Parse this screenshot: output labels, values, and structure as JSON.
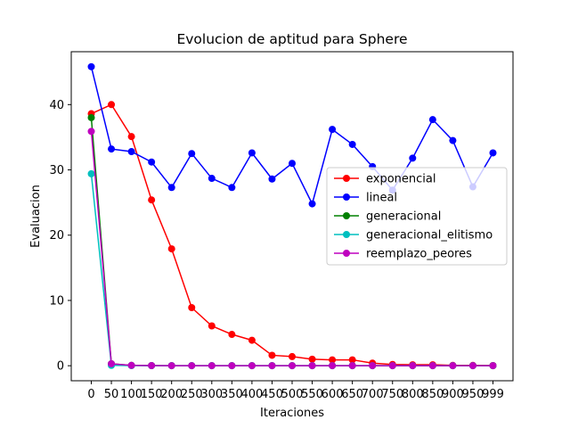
{
  "chart_data": {
    "type": "line",
    "title": "Evolucion de aptitud para Sphere",
    "xlabel": "Iteraciones",
    "ylabel": "Evaluacion",
    "xtick_labels": [
      "0",
      "50",
      "100",
      "150",
      "200",
      "250",
      "300",
      "350",
      "400",
      "450",
      "500",
      "550",
      "600",
      "650",
      "700",
      "750",
      "800",
      "850",
      "900",
      "950",
      "999"
    ],
    "yticks": [
      0,
      10,
      20,
      30,
      40
    ],
    "ylim": [
      -2.3,
      48.1
    ],
    "grid": false,
    "legend_position": "center-right",
    "series": [
      {
        "name": "exponencial",
        "color": "#ff0000",
        "values": [
          38.6,
          40.0,
          35.1,
          25.4,
          17.9,
          8.9,
          6.1,
          4.8,
          3.9,
          1.6,
          1.4,
          1.0,
          0.9,
          0.9,
          0.4,
          0.2,
          0.15,
          0.15,
          0.05,
          0.05,
          0.02
        ]
      },
      {
        "name": "lineal",
        "color": "#0000ff",
        "values": [
          45.8,
          33.2,
          32.8,
          31.2,
          27.3,
          32.5,
          28.7,
          27.3,
          32.6,
          28.6,
          31.0,
          24.8,
          36.2,
          33.9,
          30.5,
          26.9,
          31.8,
          37.7,
          34.5,
          27.4,
          32.6
        ]
      },
      {
        "name": "generacional",
        "color": "#008000",
        "values": [
          38.0,
          0.3,
          0.05,
          0.02,
          0.01,
          0.01,
          0.01,
          0.01,
          0.01,
          0.01,
          0.01,
          0.01,
          0.01,
          0.01,
          0.01,
          0.01,
          0.01,
          0.01,
          0.01,
          0.01,
          0.01
        ]
      },
      {
        "name": "generacional_elitismo",
        "color": "#00bfbf",
        "values": [
          29.4,
          0.05,
          0.02,
          0.01,
          0.01,
          0.01,
          0.01,
          0.01,
          0.01,
          0.01,
          0.01,
          0.01,
          0.01,
          0.01,
          0.01,
          0.01,
          0.01,
          0.01,
          0.01,
          0.01,
          0.01
        ]
      },
      {
        "name": "reemplazo_peores",
        "color": "#bf00bf",
        "values": [
          35.9,
          0.3,
          0.05,
          0.02,
          0.01,
          0.01,
          0.01,
          0.01,
          0.01,
          0.01,
          0.01,
          0.01,
          0.01,
          0.01,
          0.01,
          0.01,
          0.01,
          0.01,
          0.01,
          0.01,
          0.01
        ]
      }
    ]
  }
}
